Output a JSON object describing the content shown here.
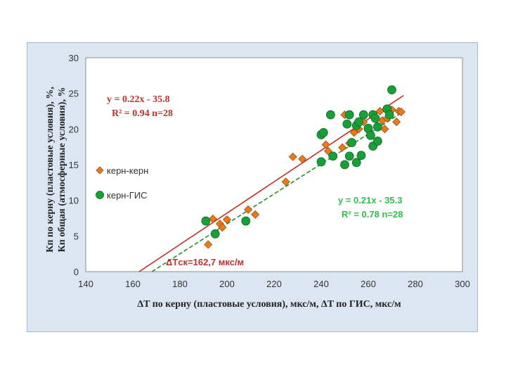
{
  "chart_data": {
    "type": "scatter",
    "xlim": [
      140,
      300
    ],
    "ylim": [
      0,
      30
    ],
    "x_ticks": [
      "140",
      "160",
      "180",
      "200",
      "220",
      "240",
      "260",
      "280",
      "300"
    ],
    "y_ticks": [
      "0",
      "5",
      "10",
      "15",
      "20",
      "25",
      "30"
    ],
    "grid": true,
    "xlabel": "ΔT по керну (пластовые условия), мкс/м, ΔT по ГИС, мкс/м",
    "ylabel_1": "Кп по керну (пластовые условия), %,",
    "ylabel_2": "Кп общая (атмосферные условия), %",
    "legend": [
      {
        "label": "керн-керн",
        "color": "#e87a1e",
        "marker": "diamond"
      },
      {
        "label": "керн-ГИС",
        "color": "#1a9e3a",
        "marker": "circle"
      }
    ],
    "equations": {
      "red_line1": "y = 0.22x - 35.8",
      "red_line2": "R² = 0.94 n=28",
      "green_line1": "y = 0.21x - 35.3",
      "green_line2": "R² = 0.78 n=28"
    },
    "annotation": "ΔTск=162,7 мкс/м",
    "series": [
      {
        "name": "керн-керн",
        "color": "#e87a1e",
        "points": [
          [
            192,
            3.8
          ],
          [
            194,
            7.4
          ],
          [
            197,
            6.7
          ],
          [
            198,
            6.2
          ],
          [
            200,
            7.3
          ],
          [
            209,
            8.7
          ],
          [
            212,
            8.0
          ],
          [
            225,
            12.6
          ],
          [
            228,
            16.1
          ],
          [
            232,
            15.8
          ],
          [
            242,
            17.8
          ],
          [
            243,
            16.9
          ],
          [
            249,
            17.4
          ],
          [
            250,
            22.0
          ],
          [
            252,
            18.0
          ],
          [
            254,
            19.5
          ],
          [
            256,
            20.0
          ],
          [
            258,
            21.0
          ],
          [
            260,
            19.8
          ],
          [
            263,
            21.7
          ],
          [
            265,
            22.5
          ],
          [
            266,
            21.2
          ],
          [
            267,
            20.0
          ],
          [
            268,
            21.5
          ],
          [
            270,
            22.7
          ],
          [
            272,
            21.0
          ],
          [
            273,
            22.5
          ],
          [
            274,
            22.4
          ]
        ]
      },
      {
        "name": "керн-ГИС",
        "color": "#1a9e3a",
        "points": [
          [
            191,
            7.1
          ],
          [
            195,
            5.3
          ],
          [
            208,
            7.1
          ],
          [
            240,
            15.4
          ],
          [
            240,
            19.2
          ],
          [
            241,
            19.5
          ],
          [
            244,
            22.0
          ],
          [
            245,
            16.2
          ],
          [
            250,
            15.0
          ],
          [
            251,
            20.7
          ],
          [
            252,
            22.0
          ],
          [
            252,
            16.2
          ],
          [
            253,
            18.1
          ],
          [
            255,
            15.3
          ],
          [
            255,
            20.5
          ],
          [
            256,
            21.0
          ],
          [
            257,
            16.3
          ],
          [
            258,
            22.0
          ],
          [
            260,
            20.1
          ],
          [
            261,
            19.1
          ],
          [
            262,
            22.0
          ],
          [
            262,
            17.6
          ],
          [
            263,
            21.5
          ],
          [
            264,
            20.3
          ],
          [
            264,
            18.3
          ],
          [
            268,
            22.8
          ],
          [
            269,
            22.0
          ],
          [
            270,
            25.5
          ]
        ]
      }
    ],
    "trendlines": [
      {
        "series": "керн-керн",
        "slope": 0.22,
        "intercept": -35.8,
        "color": "#c0312b",
        "style": "solid"
      },
      {
        "series": "керн-ГИС",
        "slope": 0.21,
        "intercept": -35.3,
        "color": "#2a8c2a",
        "style": "dashed"
      }
    ]
  }
}
